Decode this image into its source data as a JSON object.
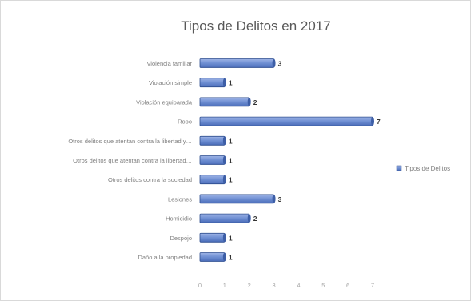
{
  "chart_data": {
    "type": "bar",
    "orientation": "horizontal",
    "title": "Tipos de Delitos en 2017",
    "categories": [
      "Violencia familiar",
      "Violación simple",
      "Violación equiparada",
      "Robo",
      "Otros delitos que atentan contra la libertad y…",
      "Otros delitos que atentan contra la libertad…",
      "Otros delitos contra la sociedad",
      "Lesiones",
      "Homicidio",
      "Despojo",
      "Daño a la propiedad"
    ],
    "series": [
      {
        "name": "Tipos de Delitos",
        "values": [
          3,
          1,
          2,
          7,
          1,
          1,
          1,
          3,
          2,
          1,
          1
        ]
      }
    ],
    "xlim": [
      0,
      7
    ],
    "xticks": [
      0,
      1,
      2,
      3,
      4,
      5,
      6,
      7
    ],
    "data_labels": true,
    "grid": false,
    "legend_position": "right",
    "bar_color": "#6f8fd3",
    "bar_edge_color": "#2f4f8f"
  }
}
